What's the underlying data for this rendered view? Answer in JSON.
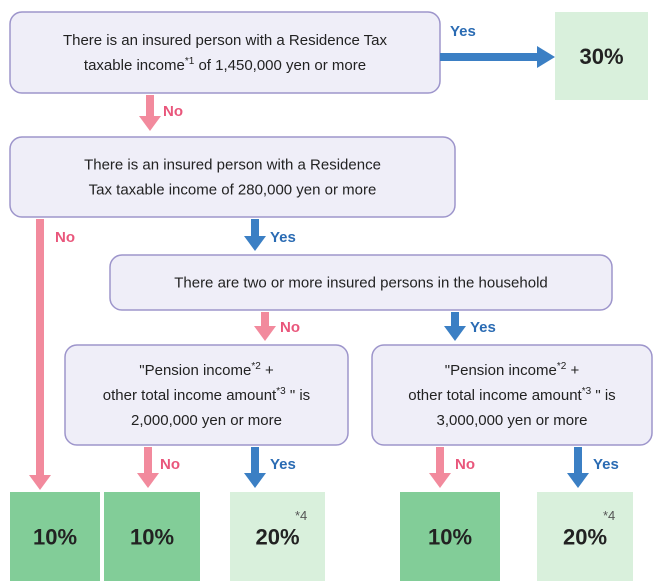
{
  "nodes": [
    {
      "lines": [
        [
          {
            "t": "There is an insured person with a Residence Tax"
          }
        ],
        [
          {
            "t": "taxable income"
          },
          {
            "sup": "*1"
          },
          {
            "t": " of 1,450,000 yen or more"
          }
        ]
      ]
    },
    {
      "lines": [
        [
          {
            "t": "There is an insured person with a Residence"
          }
        ],
        [
          {
            "t": "Tax taxable income of 280,000 yen or more"
          }
        ]
      ]
    },
    {
      "lines": [
        [
          {
            "t": "There are two or more insured persons in the household"
          }
        ]
      ]
    },
    {
      "lines": [
        [
          {
            "t": "\"Pension income"
          },
          {
            "sup": "*2"
          },
          {
            "t": " +"
          }
        ],
        [
          {
            "t": "other total income amount"
          },
          {
            "sup": "*3"
          },
          {
            "t": " \" is"
          }
        ],
        [
          {
            "t": "2,000,000 yen or more"
          }
        ]
      ]
    },
    {
      "lines": [
        [
          {
            "t": "\"Pension income"
          },
          {
            "sup": "*2"
          },
          {
            "t": " +"
          }
        ],
        [
          {
            "t": "other total income amount"
          },
          {
            "sup": "*3"
          },
          {
            "t": " \" is"
          }
        ],
        [
          {
            "t": "3,000,000 yen or more"
          }
        ]
      ]
    }
  ],
  "arrows": [
    {
      "label": "Yes"
    },
    {
      "label": "No"
    },
    {
      "label": "No"
    },
    {
      "label": "Yes"
    },
    {
      "label": "No"
    },
    {
      "label": "Yes"
    },
    {
      "label": "No"
    },
    {
      "label": "Yes"
    },
    {
      "label": "No"
    },
    {
      "label": "Yes"
    }
  ],
  "outcomes": [
    {
      "rate": "30%"
    },
    {
      "rate": "10%"
    },
    {
      "rate": "10%"
    },
    {
      "rate": "20%",
      "note": "*4"
    },
    {
      "rate": "10%"
    },
    {
      "rate": "20%",
      "note": "*4"
    }
  ]
}
